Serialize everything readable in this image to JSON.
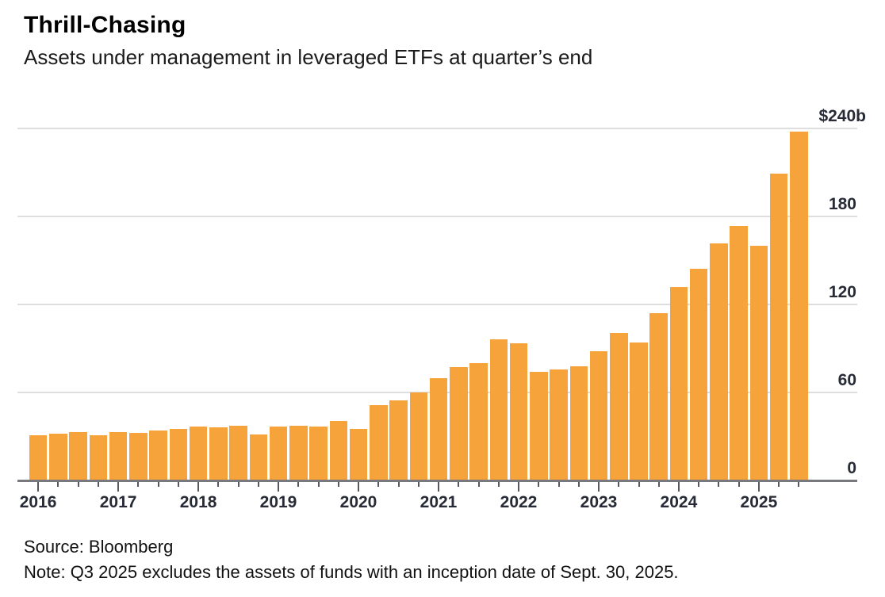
{
  "header": {
    "title": "Thrill-Chasing",
    "subtitle": "Assets under management in leveraged ETFs at quarter’s end"
  },
  "footer": {
    "source": "Source: Bloomberg",
    "note": "Note: Q3 2025 excludes the assets of funds with an inception date of Sept. 30, 2025."
  },
  "chart_data": {
    "type": "bar",
    "title": "Thrill-Chasing",
    "subtitle": "Assets under management in leveraged ETFs at quarter's end",
    "unit": "billions of US dollars",
    "categories": [
      "2016 Q1",
      "2016 Q2",
      "2016 Q3",
      "2016 Q4",
      "2017 Q1",
      "2017 Q2",
      "2017 Q3",
      "2017 Q4",
      "2018 Q1",
      "2018 Q2",
      "2018 Q3",
      "2018 Q4",
      "2019 Q1",
      "2019 Q2",
      "2019 Q3",
      "2019 Q4",
      "2020 Q1",
      "2020 Q2",
      "2020 Q3",
      "2020 Q4",
      "2021 Q1",
      "2021 Q2",
      "2021 Q3",
      "2021 Q4",
      "2022 Q1",
      "2022 Q2",
      "2022 Q3",
      "2022 Q4",
      "2023 Q1",
      "2023 Q2",
      "2023 Q3",
      "2023 Q4",
      "2024 Q1",
      "2024 Q2",
      "2024 Q3",
      "2024 Q4",
      "2025 Q1",
      "2025 Q2",
      "2025 Q3"
    ],
    "values": [
      31,
      32,
      33,
      31,
      33,
      32.5,
      34,
      35,
      37,
      36,
      37.5,
      31.5,
      37,
      37.5,
      37,
      40.5,
      35,
      51.5,
      54.5,
      60,
      69.5,
      77.5,
      80,
      96,
      93.5,
      74,
      75.5,
      78,
      88,
      100.5,
      94,
      114,
      132,
      144.5,
      161.5,
      173.5,
      160,
      209,
      238
    ],
    "x_year_labels": [
      "2016",
      "2017",
      "2018",
      "2019",
      "2020",
      "2021",
      "2022",
      "2023",
      "2024",
      "2025"
    ],
    "y_ticks": [
      {
        "value": 240,
        "label": "$240b"
      },
      {
        "value": 180,
        "label": "180"
      },
      {
        "value": 120,
        "label": "120"
      },
      {
        "value": 60,
        "label": "60"
      },
      {
        "value": 0,
        "label": "0"
      }
    ],
    "ylim": [
      0,
      240
    ],
    "xlabel": "",
    "ylabel": "$240b",
    "grid": "horizontal",
    "legend_position": "none",
    "bar_color": "#F7A33B",
    "gridline_color": "#dedede",
    "axis_color": "#77797c",
    "label_color": "#262b36"
  }
}
